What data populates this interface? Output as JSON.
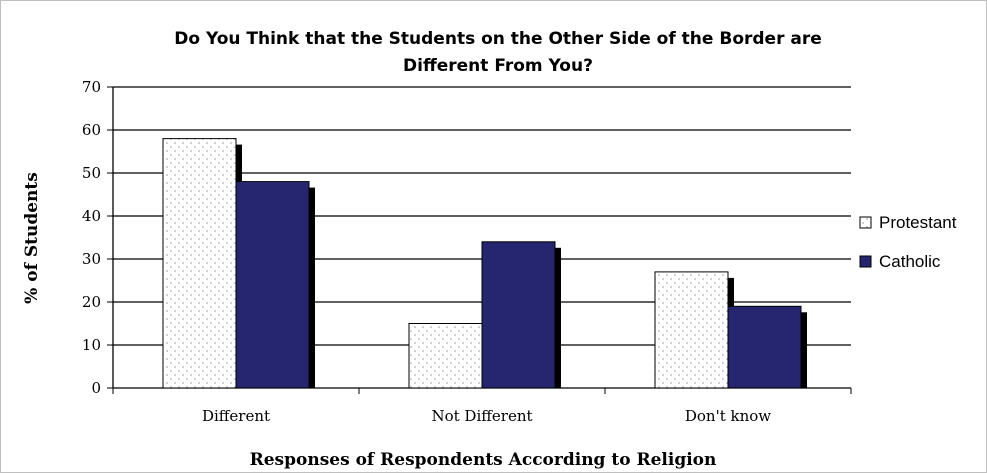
{
  "chart_data": {
    "type": "bar",
    "title_lines": [
      "Do You Think that the Students on the Other Side of the Border are",
      "Different From You?"
    ],
    "xlabel": "Responses of Respondents According to Religion",
    "ylabel": "% of Students",
    "categories": [
      "Different",
      "Not Different",
      "Don't know"
    ],
    "series": [
      {
        "name": "Protestant",
        "values": [
          58,
          15,
          27
        ],
        "fill": "dotted-white"
      },
      {
        "name": "Catholic",
        "values": [
          48,
          34,
          19
        ],
        "fill": "#262670"
      }
    ],
    "ylim": [
      0,
      70
    ],
    "yticks": [
      0,
      10,
      20,
      30,
      40,
      50,
      60,
      70
    ],
    "grid": true,
    "legend_position": "right"
  },
  "colors": {
    "catholic": "#262670",
    "shadow": "#000000",
    "protestant_fill": "#ffffff",
    "protestant_dots": "#9a9a9a"
  }
}
